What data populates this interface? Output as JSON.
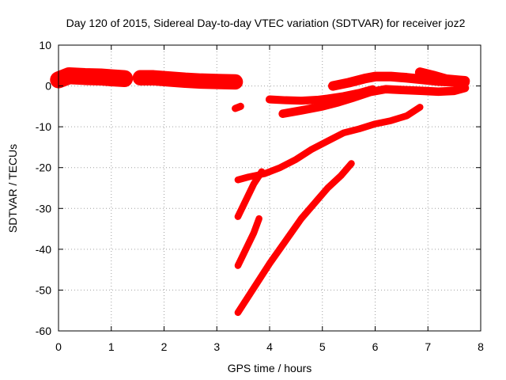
{
  "chart_data": {
    "type": "scatter",
    "title": "Day 120 of 2015, Sidereal Day-to-day VTEC variation (SDTVAR) for receiver joz2",
    "xlabel": "GPS time / hours",
    "ylabel": "SDTVAR / TECUs",
    "xlim": [
      0,
      8
    ],
    "ylim": [
      -60,
      10
    ],
    "xticks": [
      0,
      1,
      2,
      3,
      4,
      5,
      6,
      7,
      8
    ],
    "yticks": [
      -60,
      -50,
      -40,
      -30,
      -20,
      -10,
      0,
      10
    ],
    "grid": true,
    "marker": "plus",
    "color": "#ff0000",
    "series": [
      {
        "x": [
          0.0,
          0.2,
          0.5,
          0.8,
          1.0,
          1.25
        ],
        "y": [
          1.5,
          2.5,
          2.3,
          2.2,
          2.0,
          1.8
        ],
        "band": 3.0
      },
      {
        "x": [
          1.55,
          1.8,
          2.1,
          2.4,
          2.7,
          3.0,
          3.35
        ],
        "y": [
          2.0,
          2.0,
          1.7,
          1.4,
          1.2,
          1.1,
          1.0
        ],
        "band": 2.6
      },
      {
        "x": [
          3.35,
          3.45
        ],
        "y": [
          -5.5,
          -5.0
        ],
        "band": 0.6
      },
      {
        "x": [
          4.0,
          4.3,
          4.6,
          4.9,
          5.1,
          5.4,
          5.7,
          5.95
        ],
        "y": [
          -3.3,
          -3.5,
          -3.6,
          -3.4,
          -3.1,
          -2.5,
          -1.7,
          -0.8
        ],
        "band": 0.8
      },
      {
        "x": [
          4.25,
          4.6,
          5.0,
          5.3,
          5.6,
          5.9,
          6.2,
          6.5,
          6.9,
          7.2,
          7.5,
          7.7
        ],
        "y": [
          -6.8,
          -6.0,
          -5.0,
          -4.0,
          -2.8,
          -1.5,
          -0.8,
          -1.0,
          -1.2,
          -1.4,
          -1.2,
          -0.5
        ],
        "band": 0.9
      },
      {
        "x": [
          5.2,
          5.5,
          5.8,
          6.0,
          6.3,
          6.6,
          6.9,
          7.2,
          7.5,
          7.7
        ],
        "y": [
          0.0,
          0.8,
          1.8,
          2.3,
          2.3,
          2.0,
          1.6,
          1.2,
          1.0,
          0.9
        ],
        "band": 1.2
      },
      {
        "x": [
          6.85,
          7.1,
          7.35,
          7.6,
          7.7
        ],
        "y": [
          3.3,
          2.5,
          1.6,
          1.3,
          1.2
        ],
        "band": 1.3
      },
      {
        "x": [
          3.4,
          3.6,
          3.9,
          4.2,
          4.5,
          4.8,
          5.1,
          5.4,
          5.7,
          6.0,
          6.3,
          6.6,
          6.85
        ],
        "y": [
          -23.0,
          -22.3,
          -21.5,
          -20.0,
          -18.0,
          -15.5,
          -13.5,
          -11.5,
          -10.5,
          -9.3,
          -8.5,
          -7.3,
          -5.2
        ],
        "band": 0.5
      },
      {
        "x": [
          3.4,
          3.55,
          3.7,
          3.85
        ],
        "y": [
          -32.0,
          -28.0,
          -24.0,
          -21.0
        ],
        "band": 0.5
      },
      {
        "x": [
          3.4,
          3.55,
          3.7,
          3.8
        ],
        "y": [
          -44.0,
          -40.0,
          -36.0,
          -32.5
        ],
        "band": 0.5
      },
      {
        "x": [
          3.4,
          3.6,
          3.8,
          4.0,
          4.3,
          4.6,
          4.9,
          5.1,
          5.35,
          5.55
        ],
        "y": [
          -55.5,
          -51.5,
          -47.5,
          -43.5,
          -38.0,
          -32.5,
          -28.0,
          -25.0,
          -22.0,
          -19.0
        ],
        "band": 0.5
      }
    ]
  }
}
